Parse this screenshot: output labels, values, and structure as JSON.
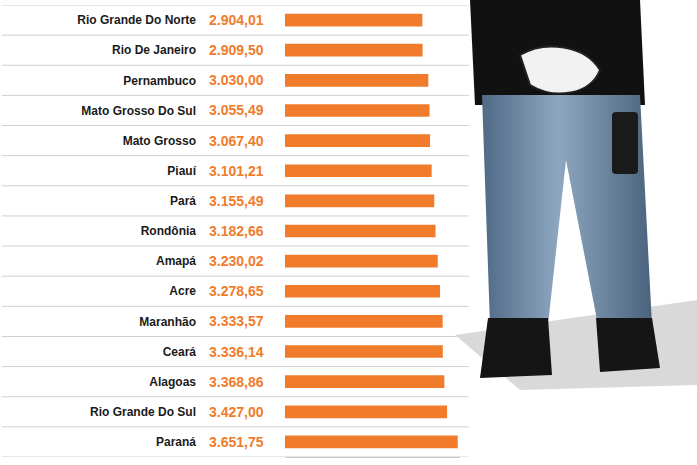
{
  "chart_data": {
    "type": "bar",
    "orientation": "horizontal",
    "categories": [
      "Rio Grande Do Norte",
      "Rio De Janeiro",
      "Pernambuco",
      "Mato Grosso Do Sul",
      "Mato Grosso",
      "Piauí",
      "Pará",
      "Rondônia",
      "Amapá",
      "Acre",
      "Maranhão",
      "Ceará",
      "Alagoas",
      "Rio Grande Do Sul",
      "Paraná"
    ],
    "values": [
      2904.01,
      2909.5,
      3030.0,
      3055.49,
      3067.4,
      3101.21,
      3155.49,
      3182.66,
      3230.02,
      3278.65,
      3333.57,
      3336.14,
      3368.86,
      3427.0,
      3651.75
    ],
    "value_labels": [
      "2.904,01",
      "2.909,50",
      "3.030,00",
      "3.055,49",
      "3.067,40",
      "3.101,21",
      "3.155,49",
      "3.182,66",
      "3.230,02",
      "3.278,65",
      "3.333,57",
      "3.336,14",
      "3.368,86",
      "3.427,00",
      "3.651,75"
    ],
    "color": "#f07c2b",
    "xlim": [
      0,
      3700
    ],
    "data_labels": true,
    "tick_labels": "y",
    "grid": true
  }
}
